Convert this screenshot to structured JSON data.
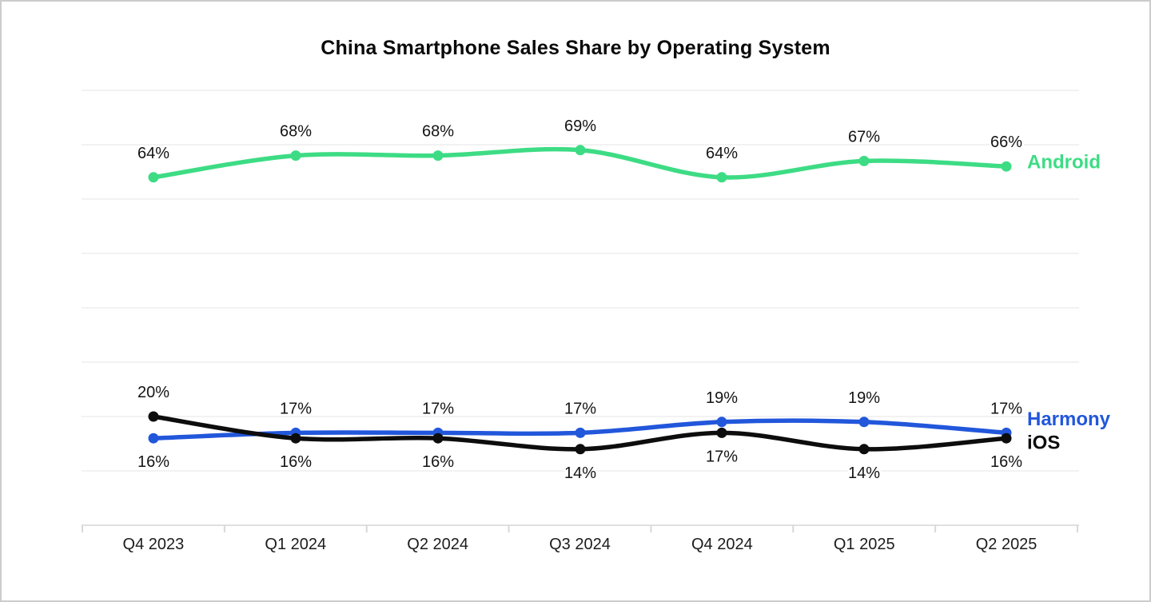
{
  "title": "China Smartphone Sales Share by Operating System",
  "chart_data": {
    "type": "line",
    "title": "China Smartphone Sales Share by Operating System",
    "categories": [
      "Q4 2023",
      "Q1 2024",
      "Q2 2024",
      "Q3 2024",
      "Q4 2024",
      "Q1 2025",
      "Q2 2025"
    ],
    "unit": "%",
    "series": [
      {
        "name": "Android",
        "color": "#3ddc84",
        "values": [
          64,
          68,
          68,
          69,
          64,
          67,
          66
        ],
        "value_labels": [
          "64%",
          "68%",
          "68%",
          "69%",
          "64%",
          "67%",
          "66%"
        ],
        "label_sides": [
          "above",
          "above",
          "above",
          "above",
          "above",
          "above",
          "above"
        ]
      },
      {
        "name": "Harmony",
        "color": "#2257db",
        "values": [
          16,
          17,
          17,
          17,
          19,
          19,
          17
        ],
        "value_labels": [
          "16%",
          "17%",
          "17%",
          "17%",
          "19%",
          "19%",
          "17%"
        ],
        "label_sides": [
          "below",
          "above",
          "above",
          "above",
          "above",
          "above",
          "above"
        ]
      },
      {
        "name": "iOS",
        "color": "#0d0d0d",
        "values": [
          20,
          16,
          16,
          14,
          17,
          14,
          16
        ],
        "value_labels": [
          "20%",
          "16%",
          "16%",
          "14%",
          "17%",
          "14%",
          "16%"
        ],
        "label_sides": [
          "above",
          "below",
          "below",
          "below",
          "below",
          "below",
          "below"
        ]
      }
    ],
    "ylim": [
      0,
      80
    ],
    "grid": {
      "visible": true,
      "step": 10,
      "color": "#eeeeee"
    },
    "axis_color": "#e0e0e0",
    "tick_color": "#d8d8d8",
    "xlabel": "",
    "ylabel": "",
    "legend_position": "right-of-line-end",
    "value_label_color": "#141414"
  }
}
